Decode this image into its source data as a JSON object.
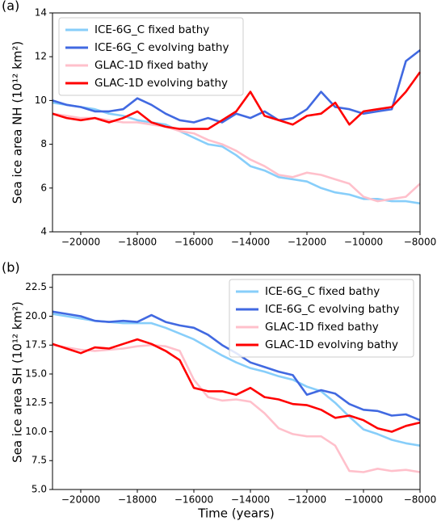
{
  "chart_data": [
    {
      "type": "line",
      "panel_label": "(a)",
      "y_label": "Sea ice area NH (10¹² km²)",
      "legend": "upper left",
      "x": [
        -21000,
        -20500,
        -20000,
        -19500,
        -19000,
        -18500,
        -18000,
        -17500,
        -17000,
        -16500,
        -16000,
        -15500,
        -15000,
        -14500,
        -14000,
        -13500,
        -13000,
        -12500,
        -12000,
        -11500,
        -11000,
        -10500,
        -10000,
        -9500,
        -9000,
        -8500,
        -8000
      ],
      "series": [
        {
          "name": "ICE-6G_C fixed bathy",
          "color": "#87cefa",
          "values": [
            9.9,
            9.8,
            9.7,
            9.6,
            9.4,
            9.3,
            9.1,
            9.0,
            8.9,
            8.6,
            8.3,
            8.0,
            7.9,
            7.5,
            7.0,
            6.8,
            6.5,
            6.4,
            6.3,
            6.0,
            5.8,
            5.7,
            5.5,
            5.5,
            5.4,
            5.4,
            5.3
          ]
        },
        {
          "name": "ICE-6G_C evolving bathy",
          "color": "#4169e1",
          "values": [
            10.0,
            9.8,
            9.7,
            9.5,
            9.5,
            9.6,
            10.1,
            9.8,
            9.4,
            9.1,
            9.0,
            9.2,
            9.0,
            9.4,
            9.2,
            9.5,
            9.1,
            9.2,
            9.6,
            10.4,
            9.7,
            9.6,
            9.4,
            9.5,
            9.6,
            11.8,
            12.3
          ]
        },
        {
          "name": "GLAC-1D fixed bathy",
          "color": "#ffc0cb",
          "values": [
            9.4,
            9.3,
            9.2,
            9.2,
            9.1,
            9.0,
            9.0,
            8.9,
            8.8,
            8.6,
            8.5,
            8.2,
            8.0,
            7.7,
            7.3,
            7.0,
            6.6,
            6.5,
            6.7,
            6.6,
            6.4,
            6.2,
            5.6,
            5.4,
            5.5,
            5.6,
            6.2
          ]
        },
        {
          "name": "GLAC-1D evolving bathy",
          "color": "#ff0000",
          "values": [
            9.4,
            9.2,
            9.1,
            9.2,
            9.0,
            9.2,
            9.5,
            9.0,
            8.8,
            8.7,
            8.7,
            8.7,
            9.1,
            9.5,
            10.4,
            9.3,
            9.1,
            8.9,
            9.3,
            9.4,
            9.9,
            8.9,
            9.5,
            9.6,
            9.7,
            10.4,
            11.3
          ]
        }
      ],
      "xlim": [
        -21000,
        -8000
      ],
      "xticks": [
        {
          "value": -20000,
          "label": "−20000"
        },
        {
          "value": -18000,
          "label": "−18000"
        },
        {
          "value": -16000,
          "label": "−16000"
        },
        {
          "value": -14000,
          "label": "−14000"
        },
        {
          "value": -12000,
          "label": "−12000"
        },
        {
          "value": -10000,
          "label": "−10000"
        },
        {
          "value": -8000,
          "label": "−8000"
        }
      ],
      "ylim": [
        4,
        14
      ],
      "yticks": [
        4,
        6,
        8,
        10,
        12,
        14
      ]
    },
    {
      "type": "line",
      "panel_label": "(b)",
      "y_label": "Sea ice area SH (10¹² km²)",
      "x_label": "Time (years)",
      "legend": "upper right",
      "x": [
        -21000,
        -20500,
        -20000,
        -19500,
        -19000,
        -18500,
        -18000,
        -17500,
        -17000,
        -16500,
        -16000,
        -15500,
        -15000,
        -14500,
        -14000,
        -13500,
        -13000,
        -12500,
        -12000,
        -11500,
        -11000,
        -10500,
        -10000,
        -9500,
        -9000,
        -8500,
        -8000
      ],
      "series": [
        {
          "name": "ICE-6G_C fixed bathy",
          "color": "#87cefa",
          "values": [
            20.2,
            20.0,
            19.8,
            19.6,
            19.5,
            19.4,
            19.4,
            19.4,
            19.0,
            18.5,
            18.0,
            17.3,
            16.6,
            16.0,
            15.5,
            15.2,
            14.8,
            14.5,
            13.9,
            13.5,
            12.5,
            11.3,
            10.2,
            9.8,
            9.3,
            9.0,
            8.8
          ]
        },
        {
          "name": "ICE-6G_C evolving bathy",
          "color": "#4169e1",
          "values": [
            20.4,
            20.2,
            20.0,
            19.6,
            19.5,
            19.6,
            19.5,
            20.1,
            19.5,
            19.2,
            19.0,
            18.4,
            17.5,
            16.8,
            16.0,
            15.6,
            15.2,
            14.9,
            13.2,
            13.6,
            13.3,
            12.4,
            11.9,
            11.8,
            11.4,
            11.5,
            11.0
          ]
        },
        {
          "name": "GLAC-1D fixed bathy",
          "color": "#ffc0cb",
          "values": [
            17.5,
            17.3,
            17.1,
            17.0,
            17.1,
            17.2,
            17.4,
            17.5,
            17.4,
            17.0,
            14.5,
            13.0,
            12.7,
            12.8,
            12.6,
            11.6,
            10.3,
            9.8,
            9.6,
            9.6,
            8.8,
            6.6,
            6.5,
            6.8,
            6.6,
            6.7,
            6.5
          ]
        },
        {
          "name": "GLAC-1D evolving bathy",
          "color": "#ff0000",
          "values": [
            17.6,
            17.2,
            16.8,
            17.3,
            17.2,
            17.6,
            18.0,
            17.6,
            17.0,
            16.2,
            13.8,
            13.5,
            13.5,
            13.2,
            13.8,
            13.0,
            12.8,
            12.4,
            12.3,
            11.9,
            11.2,
            11.4,
            11.0,
            10.3,
            10.0,
            10.5,
            10.8
          ]
        }
      ],
      "xlim": [
        -21000,
        -8000
      ],
      "xticks": [
        {
          "value": -20000,
          "label": "−20000"
        },
        {
          "value": -18000,
          "label": "−18000"
        },
        {
          "value": -16000,
          "label": "−16000"
        },
        {
          "value": -14000,
          "label": "−14000"
        },
        {
          "value": -12000,
          "label": "−12000"
        },
        {
          "value": -10000,
          "label": "−10000"
        },
        {
          "value": -8000,
          "label": "−8000"
        }
      ],
      "ylim": [
        5,
        23.6
      ],
      "yticks": [
        {
          "value": 5,
          "label": "5.0"
        },
        7.5,
        {
          "value": 10,
          "label": "10.0"
        },
        12.5,
        {
          "value": 15,
          "label": "15.0"
        },
        17.5,
        {
          "value": 20,
          "label": "20.0"
        },
        22.5
      ]
    }
  ]
}
